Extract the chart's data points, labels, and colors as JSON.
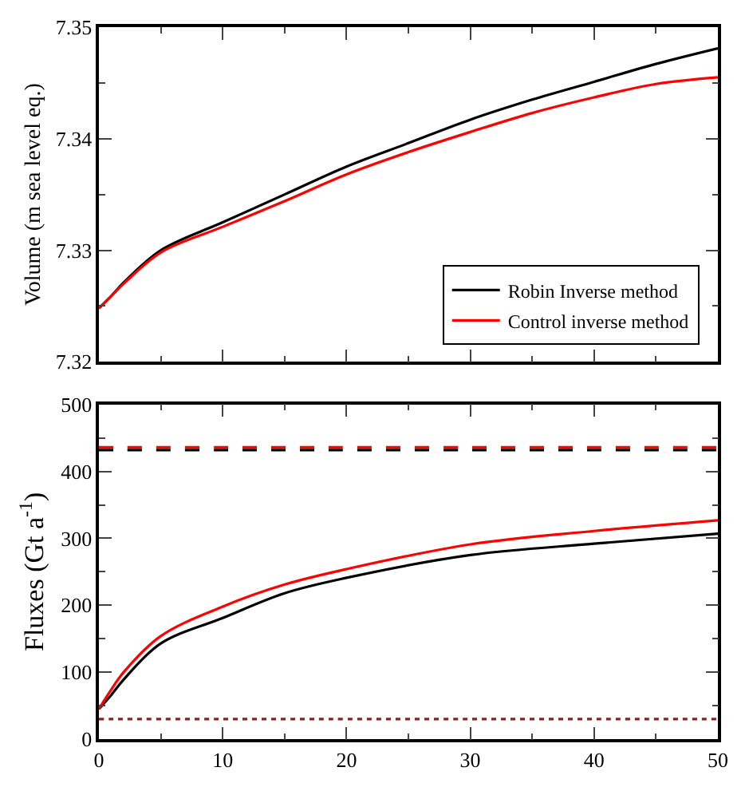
{
  "chart_data": [
    {
      "type": "line",
      "ylabel": "Volume (m sea level eq.)",
      "x": [
        0,
        1,
        2,
        5,
        10,
        15,
        20,
        25,
        30,
        35,
        40,
        45,
        50
      ],
      "xlim": [
        0,
        50
      ],
      "xticks": [
        0,
        10,
        20,
        30,
        40,
        50
      ],
      "ylim": [
        7.32,
        7.35
      ],
      "yticks": [
        7.32,
        7.33,
        7.34,
        7.35
      ],
      "tick_labels": "y",
      "legend": "bottom right",
      "line_style": "solid",
      "marker": "none",
      "series": [
        {
          "name": "Robin Inverse method",
          "color": "#000000",
          "values": [
            7.3248,
            7.3259,
            7.3271,
            7.33,
            7.3325,
            7.335,
            7.3375,
            7.3396,
            7.3417,
            7.3435,
            7.3451,
            7.3467,
            7.3481
          ]
        },
        {
          "name": "Control inverse method",
          "color": "#ff0000",
          "values": [
            7.3248,
            7.3259,
            7.327,
            7.3298,
            7.3321,
            7.3344,
            7.3368,
            7.3388,
            7.3406,
            7.3423,
            7.3437,
            7.3449,
            7.3455
          ]
        }
      ]
    },
    {
      "type": "line",
      "ylabel": "Fluxes (Gt a$^{-1}$)",
      "x": [
        0,
        1,
        2,
        5,
        10,
        15,
        20,
        30,
        40,
        50
      ],
      "xlim": [
        0,
        50
      ],
      "xticks": [
        0,
        10,
        20,
        30,
        40,
        50
      ],
      "ylim": [
        0,
        500
      ],
      "yticks": [
        0,
        100,
        200,
        300,
        400,
        500
      ],
      "legend": false,
      "marker": "none",
      "series": [
        {
          "color": "#000000",
          "values": [
            45,
            66,
            89,
            143,
            181,
            218,
            241,
            275,
            292,
            307
          ]
        },
        {
          "color": "#ff0000",
          "values": [
            45,
            74,
            100,
            154,
            198,
            231,
            254,
            291,
            311,
            327
          ]
        },
        {
          "color": "#000000",
          "line_style": "dashed",
          "values": [
            432,
            432,
            432,
            432,
            432,
            432,
            432,
            432,
            432,
            432
          ]
        },
        {
          "color": "#ff0000",
          "line_style": "dashed",
          "values": [
            436,
            436,
            436,
            436,
            436,
            436,
            436,
            436,
            436,
            436
          ]
        },
        {
          "color": "#882222",
          "line_style": "dotted",
          "values": [
            30,
            30,
            30,
            30,
            30,
            30,
            30,
            30,
            30,
            30
          ]
        }
      ]
    }
  ]
}
